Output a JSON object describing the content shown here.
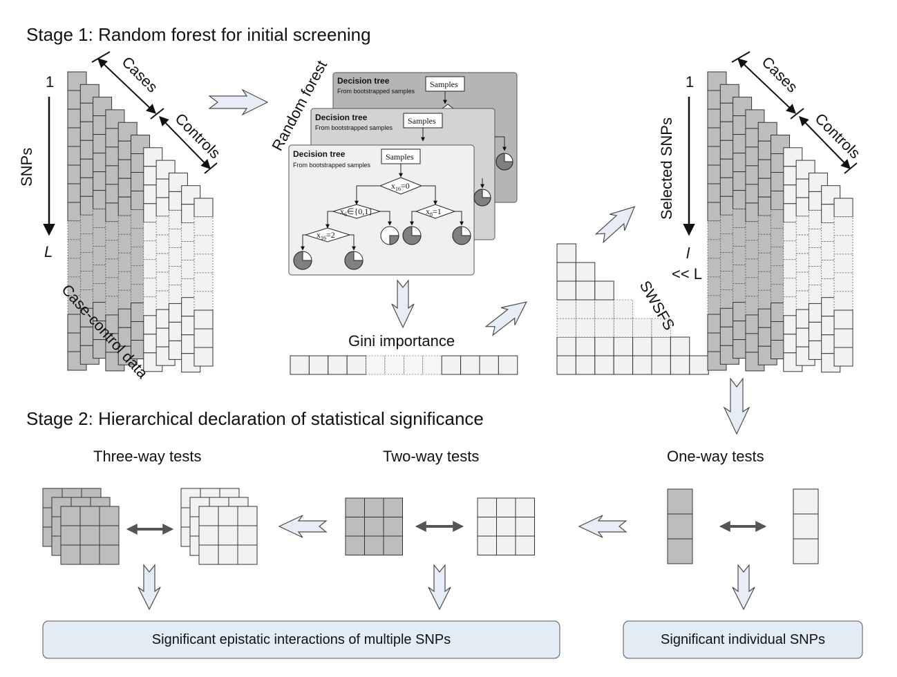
{
  "colors": {
    "case_cell": "#bdbdbd",
    "control_cell": "#f2f2f2",
    "tree_back": "#b5b5b5",
    "tree_mid": "#d3d3d3",
    "tree_front": "#f0f0f0",
    "result_box": "#e3ebf5",
    "pie_fill": "#808080"
  },
  "stage1": {
    "title": "Stage 1: Random forest for initial screening",
    "snps_label": "SNPs",
    "index_start": "1",
    "index_end": "L",
    "cases_label": "Cases",
    "controls_label": "Controls",
    "case_control_label": "Case-control data",
    "random_forest_label": "Random forest",
    "tree_title": "Decision tree",
    "tree_subtitle": "From bootstrapped samples",
    "samples_label": "Samples",
    "node_root": "x",
    "node_root_sub": "16",
    "node_root_rest": "=0",
    "node_left": "x",
    "node_left_sub": "6",
    "node_left_rest": "∈{0,1}",
    "node_right": "x",
    "node_right_sub": "8",
    "node_right_rest": "=1",
    "node_ll": "x",
    "node_ll_sub": "16",
    "node_ll_rest": "=2",
    "gini_label": "Gini importance",
    "swsfs_label": "SWSFS",
    "selected_label": "Selected SNPs",
    "selected_index_start": "1",
    "selected_index_end": "l",
    "selected_relation": "<< L"
  },
  "stage2": {
    "title": "Stage 2: Hierarchical declaration of statistical significance",
    "three_way_label": "Three-way tests",
    "two_way_label": "Two-way tests",
    "one_way_label": "One-way tests",
    "result_multiple": "Significant epistatic interactions of multiple SNPs",
    "result_individual": "Significant individual SNPs"
  }
}
